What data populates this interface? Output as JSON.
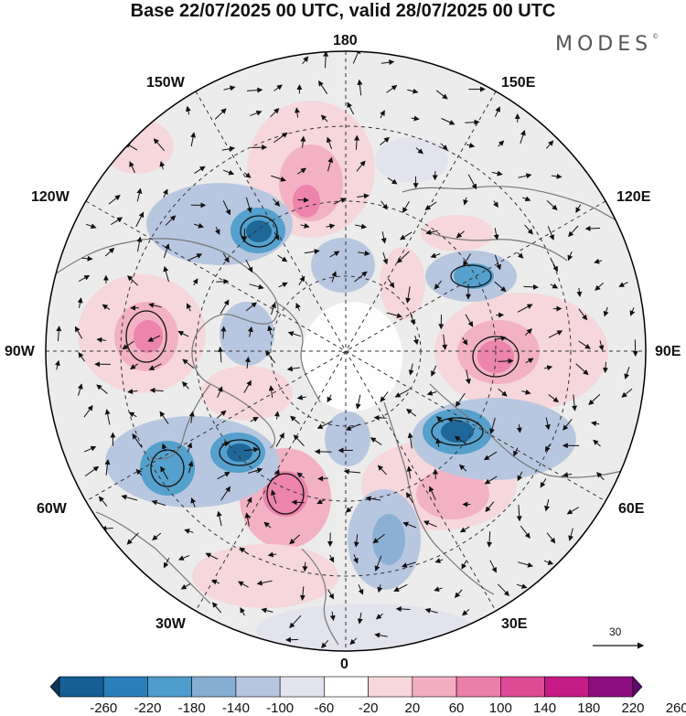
{
  "header": {
    "title": "Base 22/07/2025 00 UTC, valid 28/07/2025 00 UTC",
    "brand": "MODES",
    "brand_mark": "©"
  },
  "map": {
    "projection": "north-polar-stereographic",
    "longitude_labels": {
      "top": "180",
      "bottom": "0",
      "left": "90W",
      "right": "90E",
      "upper_left_1": "150W",
      "upper_left_2": "120W",
      "upper_right_1": "150E",
      "upper_right_2": "120E",
      "lower_left_1": "60W",
      "lower_left_2": "30W",
      "lower_right_1": "60E",
      "lower_right_2": "30E"
    },
    "vector_reference": "30"
  },
  "colorbar": {
    "ticks": [
      "-260",
      "-220",
      "-180",
      "-140",
      "-100",
      "-60",
      "-20",
      "20",
      "60",
      "100",
      "140",
      "180",
      "220",
      "260"
    ],
    "colors": [
      "#0d3557",
      "#155f95",
      "#2a7fbb",
      "#4d9ccc",
      "#86add2",
      "#b6c6e0",
      "#e3e3ef",
      "#ffffff",
      "#f7d6dc",
      "#f3afc2",
      "#ec7fa9",
      "#df4a96",
      "#c51b86",
      "#8e0d7e",
      "#5c0b6e"
    ]
  }
}
